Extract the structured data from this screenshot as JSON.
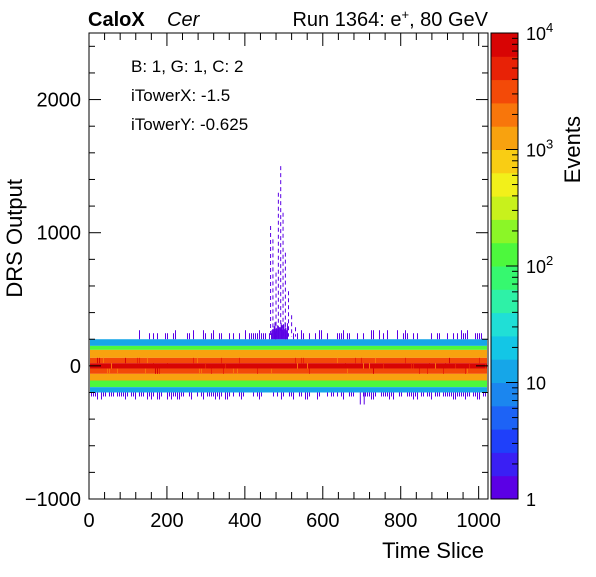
{
  "chart_data": {
    "type": "heatmap",
    "header": {
      "experiment": "CaloX",
      "channel": "Cer",
      "run_prefix": "Run 1364: e",
      "run_particle_charge": "+",
      "run_suffix": ", 80 GeV"
    },
    "info_box": [
      "B: 1, G: 1, C: 2",
      "iTowerX: -1.5",
      "iTowerY: -0.625"
    ],
    "xlabel": "Time Slice",
    "ylabel": "DRS Output",
    "zlabel": "Events",
    "xlim": [
      0,
      1024
    ],
    "ylim": [
      -1000,
      2500
    ],
    "xticks": [
      "0",
      "200",
      "400",
      "600",
      "800",
      "1000"
    ],
    "yticks": [
      "−1000",
      "0",
      "1000",
      "2000"
    ],
    "zscale": "log",
    "zlim": [
      1,
      10000
    ],
    "zticks": [
      {
        "value": 1,
        "base": "1",
        "exp": ""
      },
      {
        "value": 10,
        "base": "10",
        "exp": ""
      },
      {
        "value": 100,
        "base": "10",
        "exp": "2"
      },
      {
        "value": 1000,
        "base": "10",
        "exp": "3"
      },
      {
        "value": 10000,
        "base": "10",
        "exp": "4"
      }
    ],
    "palette": [
      "#5b00e5",
      "#3a1ff4",
      "#1f40fa",
      "#1d63f6",
      "#1b86ef",
      "#16a6e8",
      "#13c6e6",
      "#20dfd6",
      "#2ef1a7",
      "#36f86f",
      "#4df83d",
      "#8bf627",
      "#c8f11c",
      "#f2f01a",
      "#f9cd14",
      "#f8a20f",
      "#f8760b",
      "#f34a08",
      "#e82206",
      "#d80404"
    ],
    "baseline_bands": [
      {
        "y_range": [
          150,
          200
        ],
        "events": 15
      },
      {
        "y_range": [
          120,
          150
        ],
        "events": 100
      },
      {
        "y_range": [
          60,
          120
        ],
        "events": 1500
      },
      {
        "y_range": [
          20,
          60
        ],
        "events": 3500
      },
      {
        "y_range": [
          -20,
          20
        ],
        "events": 9000
      },
      {
        "y_range": [
          -60,
          -20
        ],
        "events": 3500
      },
      {
        "y_range": [
          -110,
          -60
        ],
        "events": 1500
      },
      {
        "y_range": [
          -160,
          -110
        ],
        "events": 100
      },
      {
        "y_range": [
          -200,
          -160
        ],
        "events": 15
      }
    ],
    "signal_pulse": {
      "x_range": [
        460,
        540
      ],
      "peak_x": 492,
      "peak_y": 1500,
      "events": 1
    },
    "sparse_outliers": {
      "upper_y_range": [
        200,
        260
      ],
      "lower_y_range": [
        -300,
        -200
      ],
      "events": 1
    }
  }
}
